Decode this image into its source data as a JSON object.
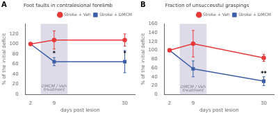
{
  "chart_data": [
    {
      "type": "line",
      "title": "Foot faults in contralesional forelimb",
      "x_label": "days post lesion",
      "y_label": "% of the initial deficit",
      "x": [
        2,
        9,
        30
      ],
      "series": [
        {
          "name": "Stroke + Veh",
          "color": "#e8393a",
          "marker": "circle",
          "values": [
            100,
            108,
            108
          ],
          "errors": [
            0,
            18,
            12
          ]
        },
        {
          "name": "Stroke + DMCM",
          "color": "#3d5fa8",
          "marker": "square",
          "values": [
            100,
            65,
            65
          ],
          "errors": [
            0,
            8,
            22
          ]
        }
      ],
      "xlim": [
        0.5,
        33
      ],
      "xticks": [
        2,
        9,
        30
      ],
      "ylim": [
        0,
        140
      ],
      "yticks": [
        0,
        20,
        40,
        60,
        80,
        100,
        120
      ],
      "shade": {
        "x": [
          5,
          13
        ],
        "color": "#d0cce0"
      },
      "annotations": [
        {
          "text": "A"
        },
        {
          "x": 9,
          "y": 75,
          "text": "*"
        },
        {
          "x": 30,
          "y": 75,
          "text": "*"
        },
        {
          "x": 9,
          "y": 12,
          "text": "DMCM / Veh",
          "color": "gray"
        },
        {
          "x": 9,
          "y": 5,
          "text": "treatment",
          "color": "gray"
        }
      ],
      "grid": false,
      "legend": "upper right"
    },
    {
      "type": "line",
      "title": "Fraction of unsuccessful graspings",
      "x_label": "days post lesion",
      "y_label": "% of the initial deficit",
      "x": [
        2,
        9,
        30
      ],
      "series": [
        {
          "name": "Stroke + Veh",
          "color": "#e8393a",
          "marker": "circle",
          "values": [
            100,
            115,
            83
          ],
          "errors": [
            0,
            30,
            8
          ]
        },
        {
          "name": "Stroke + DMCM",
          "color": "#3d5fa8",
          "marker": "square",
          "values": [
            100,
            58,
            30
          ],
          "errors": [
            0,
            18,
            10
          ]
        }
      ],
      "xlim": [
        0.5,
        33
      ],
      "xticks": [
        2,
        9,
        30
      ],
      "ylim": [
        0,
        160
      ],
      "yticks": [
        0,
        20,
        40,
        60,
        80,
        100,
        120,
        140,
        160
      ],
      "shade": {
        "x": [
          5,
          13
        ],
        "color": "#d0cce0"
      },
      "annotations": [
        {
          "text": "B"
        },
        {
          "x": 30,
          "y": 40,
          "text": "**"
        },
        {
          "x": 9,
          "y": 12,
          "text": "DMCM / Veh",
          "color": "gray"
        },
        {
          "x": 9,
          "y": 5,
          "text": "treatment",
          "color": "gray"
        }
      ],
      "grid": false,
      "legend": "upper right"
    }
  ]
}
